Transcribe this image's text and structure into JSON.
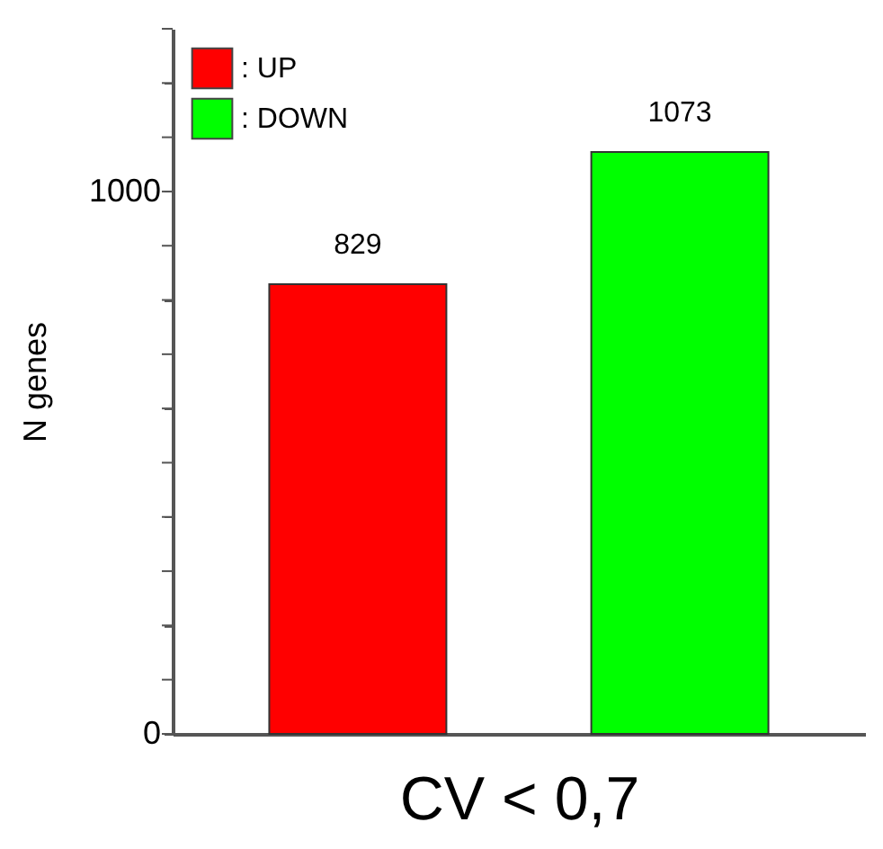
{
  "chart_data": {
    "type": "bar",
    "xlabel": "CV < 0,7",
    "ylabel": "N genes",
    "categories": [
      null,
      null
    ],
    "series": [
      {
        "name": ": UP",
        "color": "#ff0000",
        "values": [
          829,
          null
        ]
      },
      {
        "name": ": DOWN",
        "color": "#00ff00",
        "values": [
          null,
          1073
        ]
      }
    ],
    "ylim": [
      0,
      1300
    ],
    "yticks": [
      0,
      {
        "value": 100,
        "label": null
      },
      {
        "value": 200,
        "label": null
      },
      {
        "value": 300,
        "label": null
      },
      {
        "value": 400,
        "label": null
      },
      {
        "value": 500,
        "label": null
      },
      {
        "value": 600,
        "label": null
      },
      {
        "value": 700,
        "label": null
      },
      {
        "value": 800,
        "label": null
      },
      {
        "value": 900,
        "label": null
      },
      1000,
      {
        "value": 1100,
        "label": null
      },
      {
        "value": 1200,
        "label": null
      },
      {
        "value": 1300,
        "label": null
      }
    ],
    "data_labels": true,
    "legend": "top left",
    "grid": false
  }
}
